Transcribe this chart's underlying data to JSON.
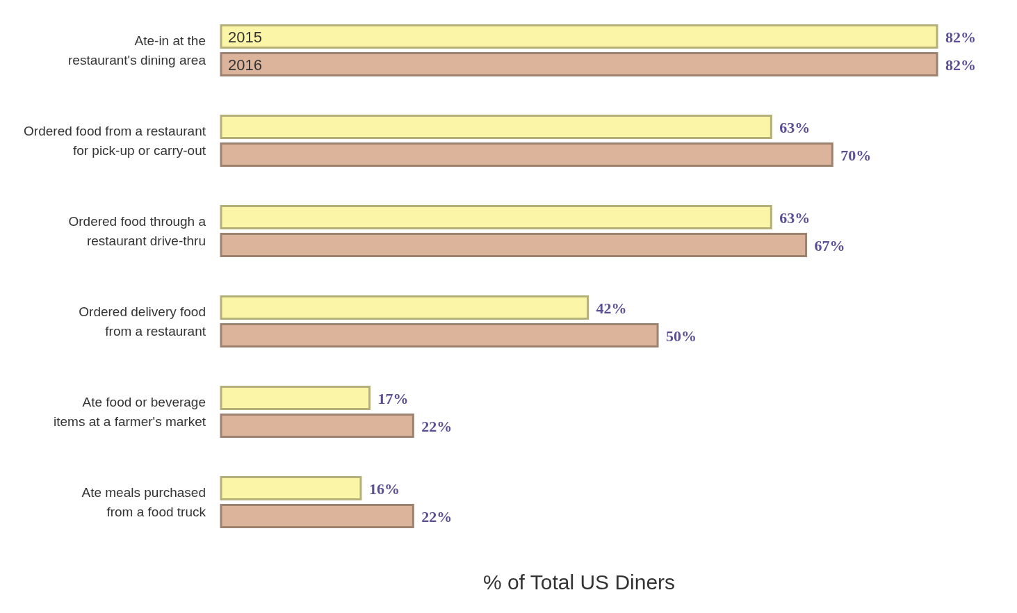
{
  "chart_data": {
    "type": "bar",
    "orientation": "horizontal",
    "xlabel": "% of Total US Diners",
    "categories": [
      "Ate-in at the restaurant's dining area",
      "Ordered food from a restaurant for pick-up or carry-out",
      "Ordered food through a restaurant drive-thru",
      "Ordered delivery food from a restaurant",
      "Ate food or beverage items at a farmer's market",
      "Ate meals purchased from a food truck"
    ],
    "series": [
      {
        "name": "2015",
        "color": "#fbf5a8",
        "values": [
          82,
          63,
          63,
          42,
          17,
          16
        ],
        "value_labels": [
          "82%",
          "63%",
          "63%",
          "42%",
          "17%",
          "16%"
        ]
      },
      {
        "name": "2016",
        "color": "#dcb49c",
        "values": [
          82,
          70,
          67,
          50,
          22,
          22
        ],
        "value_labels": [
          "82%",
          "70%",
          "67%",
          "50%",
          "22%",
          "22%"
        ]
      }
    ]
  }
}
